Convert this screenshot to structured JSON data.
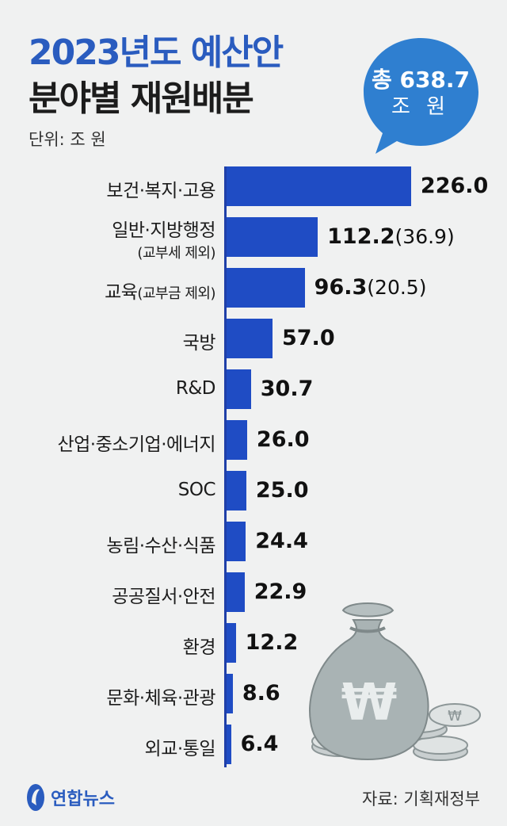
{
  "title_line1": "2023년도 예산안",
  "title_line2": "분야별 재원배분",
  "unit": "단위: 조 원",
  "total_badge": {
    "line1": "총 638.7",
    "line2": "조 원"
  },
  "source": "자료: 기획재정부",
  "logo": "연합뉴스",
  "colors": {
    "bar": "#1f4cc4",
    "title_accent": "#2a5cbf",
    "bubble": "#2f7fd0",
    "background": "#f0f1f1"
  },
  "chart_data": {
    "type": "bar",
    "orientation": "horizontal",
    "title": "2023년도 예산안 분야별 재원배분",
    "unit": "조 원",
    "categories": [
      {
        "label": "보건·복지·고용",
        "sub": ""
      },
      {
        "label": "일반·지방행정",
        "sub": "(교부세 제외)"
      },
      {
        "label": "교육",
        "sub": "(교부금 제외)"
      },
      {
        "label": "국방",
        "sub": ""
      },
      {
        "label": "R&D",
        "sub": ""
      },
      {
        "label": "산업·중소기업·에너지",
        "sub": ""
      },
      {
        "label": "SOC",
        "sub": ""
      },
      {
        "label": "농림·수산·식품",
        "sub": ""
      },
      {
        "label": "공공질서·안전",
        "sub": ""
      },
      {
        "label": "환경",
        "sub": ""
      },
      {
        "label": "문화·체육·관광",
        "sub": ""
      },
      {
        "label": "외교·통일",
        "sub": ""
      }
    ],
    "values": [
      226.0,
      112.2,
      96.3,
      57.0,
      30.7,
      26.0,
      25.0,
      24.4,
      22.9,
      12.2,
      8.6,
      6.4
    ],
    "value_labels": [
      "226.0",
      "112.2",
      "96.3",
      "57.0",
      "30.7",
      "26.0",
      "25.0",
      "24.4",
      "22.9",
      "12.2",
      "8.6",
      "6.4"
    ],
    "paren_labels": [
      "",
      "(36.9)",
      "(20.5)",
      "",
      "",
      "",
      "",
      "",
      "",
      "",
      "",
      ""
    ]
  }
}
